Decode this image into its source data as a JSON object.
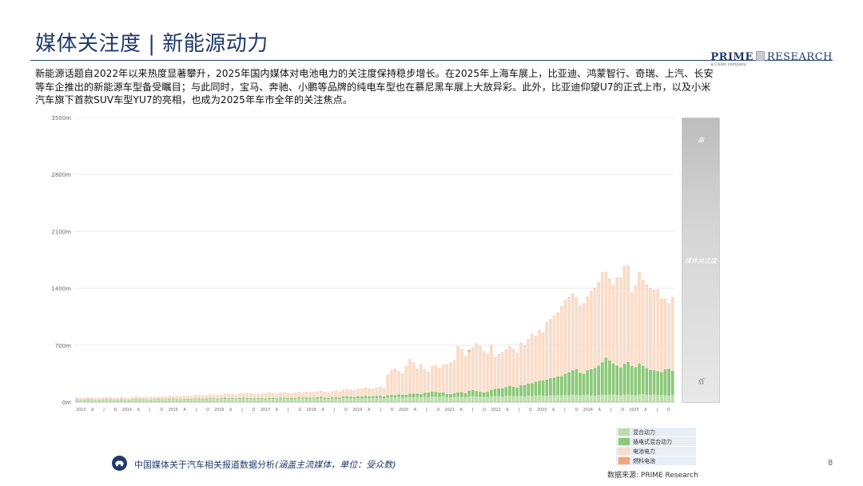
{
  "header": {
    "title": "媒体关注度 | 新能源动力",
    "logo_brand": "PRIME",
    "logo_brand2": "RESEARCH",
    "logo_tag": "a Cision company"
  },
  "description": "新能源话题自2022年以来热度显著攀升，2025年国内媒体对电池电力的关注度保持稳步增长。在2025年上海车展上，比亚迪、鸿蒙智行、奇瑞、上汽、长安等车企推出的新能源车型备受瞩目；与此同时，宝马、奔驰、小鹏等品牌的纯电车型也在慕尼黑车展上大放异彩。此外，比亚迪仰望U7的正式上市，以及小米汽车旗下首款SUV车型YU7的亮相，也成为2025年车市全年的关注焦点。",
  "side_scale": {
    "high": "高",
    "mid": "媒体关注度",
    "low": "低"
  },
  "footer": {
    "text_main": "中国媒体关于汽车相关报道数据分析",
    "text_note": "(涵盖主流媒体，单位：受众数)",
    "page_number": "8",
    "source": "数据来源: PRIME Research"
  },
  "colors": {
    "hybrid": "#b9dea8",
    "phev": "#8cc97a",
    "battery": "#f9dcc8",
    "fuel_cell": "#f2a47c",
    "grid": "#ececec",
    "axis_text": "#666666"
  },
  "chart_data": {
    "type": "bar",
    "stacked": true,
    "ylim": [
      0,
      3500
    ],
    "yticks": [
      "0m",
      "700m",
      "1400m",
      "2100m",
      "2800m",
      "3500m"
    ],
    "ytick_values": [
      0,
      700,
      1400,
      2100,
      2800,
      3500
    ],
    "x_labels": [
      "2013",
      "A",
      "J",
      "O",
      "2014",
      "A",
      "J",
      "O",
      "2015",
      "A",
      "J",
      "O",
      "2016",
      "A",
      "J",
      "O",
      "2017",
      "A",
      "J",
      "O",
      "2018",
      "A",
      "J",
      "O",
      "2019",
      "A",
      "J",
      "O",
      "2020",
      "A",
      "J",
      "O",
      "2021",
      "A",
      "J",
      "O",
      "2022",
      "A",
      "J",
      "O",
      "2023",
      "A",
      "J",
      "O",
      "2024",
      "A",
      "J",
      "O",
      "2025",
      "A",
      "J",
      "O"
    ],
    "series": [
      {
        "name": "混合动力",
        "key": "hybrid",
        "values": [
          30,
          28,
          25,
          32,
          30,
          27,
          26,
          28,
          33,
          30,
          28,
          24,
          30,
          28,
          27,
          29,
          35,
          32,
          30,
          28,
          26,
          30,
          32,
          28,
          30,
          34,
          36,
          33,
          30,
          35,
          32,
          34,
          38,
          36,
          33,
          35,
          40,
          38,
          35,
          37,
          42,
          38,
          40,
          36,
          38,
          42,
          40,
          36,
          35,
          38,
          37,
          34,
          40,
          38,
          36,
          42,
          40,
          38,
          36,
          38,
          45,
          42,
          40,
          38,
          42,
          44,
          46,
          40,
          38,
          42,
          44,
          40,
          48,
          50,
          46,
          44,
          48,
          46,
          52,
          50,
          48,
          50,
          52,
          48,
          55,
          60,
          58,
          62,
          56,
          60,
          64,
          58,
          62,
          60,
          66,
          64,
          70,
          68,
          65,
          72,
          60,
          58,
          62,
          66,
          64,
          60,
          70,
          72,
          68,
          66,
          62,
          64,
          70,
          74,
          72,
          68,
          76,
          80,
          74,
          72,
          76,
          70,
          78,
          74,
          80,
          82,
          78,
          76,
          84,
          80,
          86,
          82,
          88,
          84,
          90,
          86,
          82,
          88,
          92,
          84,
          80,
          88,
          90,
          86,
          92,
          94,
          88,
          84,
          90,
          92,
          86,
          88,
          94,
          96,
          90,
          86,
          92,
          90,
          88,
          84,
          80,
          86
        ]
      },
      {
        "name": "插电式混合动力",
        "key": "phev",
        "values": [
          5,
          4,
          5,
          6,
          5,
          4,
          5,
          5,
          6,
          5,
          4,
          5,
          6,
          5,
          5,
          6,
          7,
          6,
          6,
          5,
          5,
          6,
          7,
          6,
          6,
          7,
          8,
          7,
          6,
          7,
          8,
          7,
          8,
          9,
          8,
          9,
          10,
          9,
          8,
          10,
          12,
          10,
          11,
          10,
          12,
          13,
          12,
          11,
          10,
          12,
          13,
          11,
          12,
          13,
          12,
          14,
          13,
          12,
          14,
          13,
          15,
          14,
          16,
          15,
          14,
          16,
          18,
          15,
          14,
          16,
          18,
          16,
          20,
          22,
          20,
          18,
          22,
          24,
          22,
          20,
          24,
          26,
          25,
          22,
          28,
          30,
          28,
          32,
          35,
          30,
          40,
          45,
          42,
          38,
          50,
          55,
          60,
          58,
          52,
          48,
          40,
          42,
          46,
          55,
          60,
          50,
          70,
          75,
          68,
          60,
          58,
          62,
          80,
          90,
          95,
          100,
          110,
          120,
          115,
          105,
          130,
          140,
          150,
          160,
          170,
          180,
          190,
          200,
          210,
          220,
          230,
          240,
          260,
          280,
          300,
          320,
          280,
          260,
          300,
          320,
          340,
          360,
          400,
          460,
          420,
          380,
          360,
          340,
          380,
          400,
          360,
          340,
          380,
          350,
          330,
          310,
          300,
          290,
          280,
          320,
          330,
          300
        ]
      },
      {
        "name": "电池电力",
        "key": "battery",
        "values": [
          20,
          18,
          22,
          20,
          18,
          21,
          19,
          22,
          24,
          20,
          18,
          22,
          24,
          22,
          20,
          23,
          26,
          24,
          22,
          25,
          28,
          26,
          24,
          28,
          30,
          32,
          28,
          30,
          34,
          36,
          32,
          30,
          38,
          40,
          36,
          34,
          42,
          45,
          40,
          38,
          48,
          50,
          46,
          44,
          52,
          55,
          60,
          58,
          50,
          48,
          54,
          58,
          62,
          56,
          52,
          60,
          64,
          58,
          56,
          62,
          66,
          60,
          70,
          65,
          62,
          68,
          72,
          66,
          64,
          70,
          78,
          74,
          80,
          85,
          82,
          78,
          90,
          95,
          100,
          92,
          88,
          100,
          110,
          98,
          250,
          300,
          320,
          280,
          260,
          350,
          420,
          380,
          300,
          360,
          280,
          250,
          310,
          320,
          300,
          340,
          360,
          380,
          400,
          560,
          520,
          450,
          480,
          520,
          580,
          560,
          500,
          460,
          540,
          380,
          420,
          440,
          460,
          480,
          460,
          420,
          520,
          480,
          540,
          600,
          560,
          620,
          580,
          700,
          720,
          760,
          780,
          850,
          900,
          920,
          940,
          880,
          820,
          860,
          900,
          960,
          980,
          1020,
          1100,
          1050,
          1000,
          960,
          1080,
          1100,
          1200,
          1180,
          900,
          1000,
          1120,
          1050,
          1020,
          1000,
          980,
          1000,
          900,
          860,
          800,
          900
        ]
      },
      {
        "name": "燃料电池",
        "key": "fuel_cell",
        "values": [
          2,
          1,
          2,
          1,
          2,
          1,
          1,
          2,
          1,
          2,
          1,
          1,
          2,
          1,
          1,
          2,
          2,
          1,
          1,
          2,
          2,
          1,
          2,
          1,
          2,
          2,
          1,
          2,
          2,
          1,
          2,
          2,
          2,
          2,
          2,
          2,
          2,
          2,
          2,
          2,
          2,
          2,
          2,
          2,
          2,
          2,
          2,
          2,
          2,
          2,
          2,
          2,
          2,
          2,
          2,
          2,
          2,
          2,
          2,
          2,
          2,
          2,
          2,
          2,
          2,
          2,
          2,
          2,
          2,
          2,
          2,
          2,
          3,
          3,
          3,
          3,
          3,
          3,
          3,
          3,
          3,
          3,
          3,
          3,
          3,
          3,
          3,
          3,
          3,
          3,
          3,
          3,
          3,
          3,
          3,
          3,
          3,
          3,
          3,
          3,
          4,
          4,
          4,
          4,
          4,
          4,
          20,
          4,
          4,
          4,
          4,
          4,
          4,
          4,
          4,
          4,
          4,
          4,
          4,
          4,
          4,
          4,
          4,
          4,
          4,
          4,
          4,
          4,
          4,
          4,
          4,
          4,
          4,
          4,
          4,
          4,
          4,
          4,
          4,
          4,
          4,
          4,
          4,
          4,
          4,
          4,
          4,
          4,
          4,
          4,
          4,
          4,
          4,
          4,
          4,
          4,
          4,
          4,
          4,
          4,
          4,
          4
        ]
      }
    ]
  },
  "legend": [
    {
      "label": "混合动力",
      "key": "hybrid"
    },
    {
      "label": "插电式混合动力",
      "key": "phev"
    },
    {
      "label": "电池电力",
      "key": "battery"
    },
    {
      "label": "燃料电池",
      "key": "fuel_cell"
    }
  ]
}
